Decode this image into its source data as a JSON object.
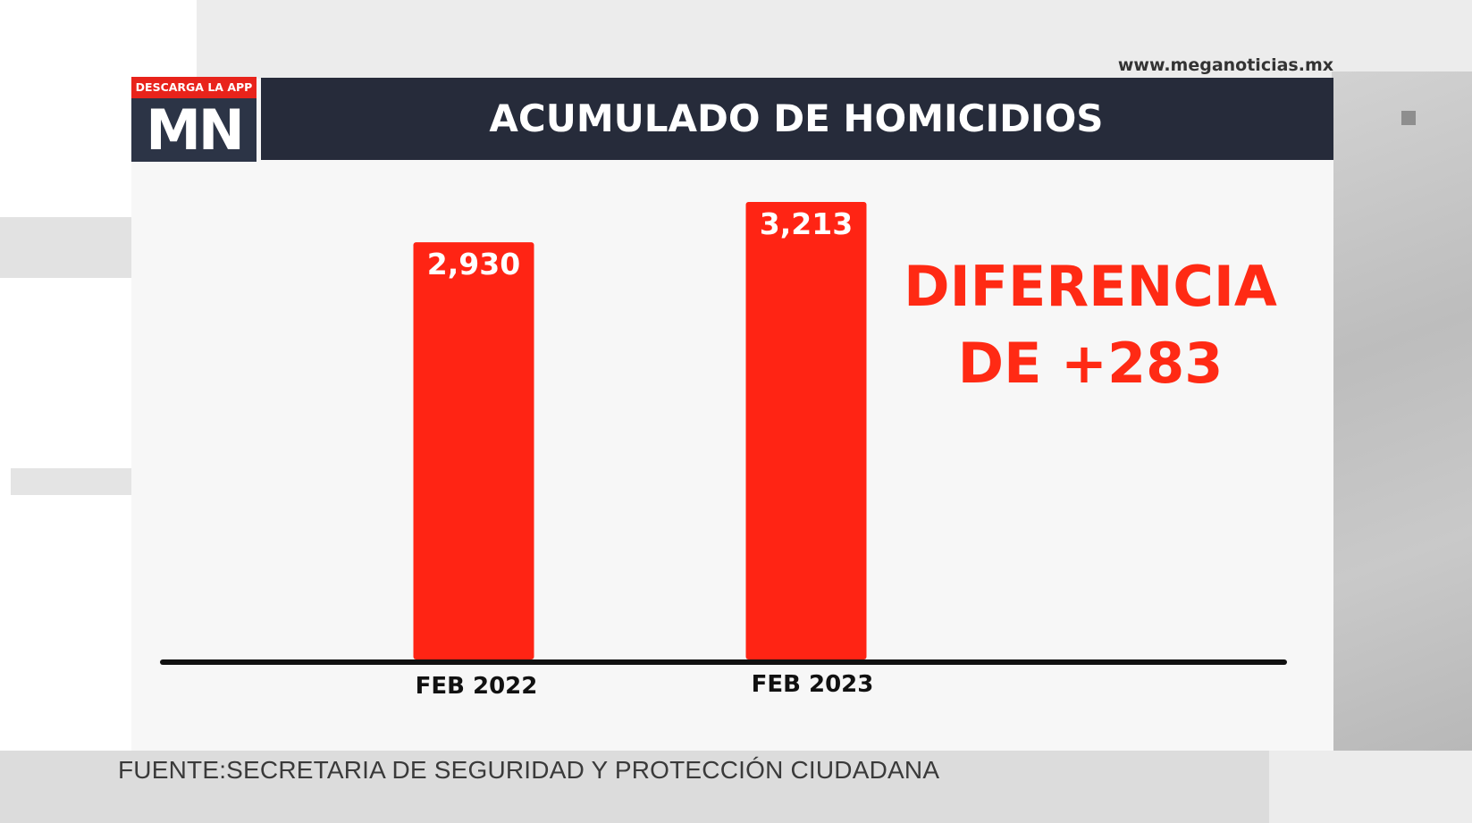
{
  "website": "www.meganoticias.mx",
  "logo": {
    "tagline": "DESCARGA LA APP",
    "brand": "MN"
  },
  "title": "ACUMULADO DE HOMICIDIOS",
  "difference": {
    "line1": "DIFERENCIA",
    "line2": "DE +283"
  },
  "source": "FUENTE:SECRETARIA DE SEGURIDAD Y PROTECCIÓN CIUDADANA",
  "colors": {
    "bar": "#ff2414",
    "title_bar": "#262b3a",
    "logo_red": "#e8231b",
    "accent_text": "#ff2a14"
  },
  "chart_data": {
    "type": "bar",
    "categories": [
      "FEB 2022",
      "FEB 2023"
    ],
    "values": [
      2930,
      3213
    ],
    "value_labels": [
      "2,930",
      "3,213"
    ],
    "title": "ACUMULADO DE HOMICIDIOS",
    "xlabel": "",
    "ylabel": "",
    "ylim": [
      0,
      3213
    ],
    "grid": false,
    "legend": "none"
  }
}
